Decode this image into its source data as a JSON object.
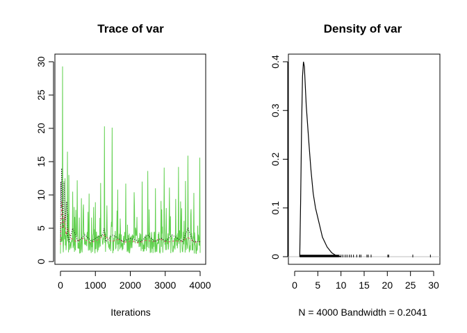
{
  "chart_data": [
    {
      "type": "line",
      "title": "Trace of var",
      "xlabel": "Iterations",
      "ylabel": "",
      "xlim": [
        0,
        4000
      ],
      "ylim": [
        0,
        30
      ],
      "xticks": [
        0,
        1000,
        2000,
        3000,
        4000
      ],
      "yticks": [
        0,
        5,
        10,
        15,
        20,
        25,
        30
      ],
      "n_iterations": 4000,
      "series": [
        {
          "color": "#000000",
          "style": "solid",
          "x": [
            0,
            10,
            20,
            35,
            50,
            70,
            100,
            140,
            180,
            200,
            250,
            350,
            500,
            700,
            900,
            1000,
            1200,
            1250,
            1300,
            1500,
            1800,
            2000,
            2300,
            2500,
            2700,
            2900,
            3000,
            3200,
            3500,
            3650,
            3800,
            4000
          ],
          "y": [
            3,
            12,
            8,
            14,
            10,
            5,
            12,
            6,
            9,
            4,
            3,
            5,
            3,
            4,
            3,
            3.5,
            4,
            5,
            3,
            4,
            3,
            3.5,
            3,
            4,
            3,
            3.5,
            3,
            4,
            3,
            5,
            3,
            3
          ]
        },
        {
          "color": "#df536b",
          "style": "dashed",
          "x": [
            0,
            20,
            40,
            80,
            120,
            160,
            220,
            300,
            450,
            650,
            850,
            1050,
            1250,
            1450,
            1650,
            1850,
            2050,
            2250,
            2450,
            2650,
            2850,
            3050,
            3250,
            3450,
            3650,
            3850,
            4000
          ],
          "y": [
            2.5,
            6,
            9,
            5,
            7,
            4,
            5,
            3.5,
            3,
            3.5,
            2.8,
            3.2,
            4,
            3,
            3.3,
            2.9,
            3.1,
            2.8,
            3.2,
            3,
            3.4,
            2.9,
            3.1,
            3,
            3.6,
            2.9,
            3
          ]
        },
        {
          "color": "#61d04f",
          "style": "solid",
          "spikes": [
            [
              60,
              29.3
            ],
            [
              195,
              16.5
            ],
            [
              240,
              13
            ],
            [
              1255,
              20.3
            ],
            [
              1480,
              20.1
            ],
            [
              3650,
              15.9
            ],
            [
              3990,
              15.6
            ],
            [
              2970,
              14.1
            ],
            [
              3380,
              14.2
            ],
            [
              2500,
              13.6
            ],
            [
              130,
              12.5
            ],
            [
              480,
              12.2
            ],
            [
              1150,
              11.8
            ],
            [
              2340,
              12.0
            ],
            [
              3580,
              12.1
            ],
            [
              1870,
              11.7
            ],
            [
              350,
              10.5
            ],
            [
              2720,
              11.0
            ],
            [
              3120,
              11.1
            ],
            [
              820,
              10.2
            ],
            [
              1640,
              10.8
            ],
            [
              2110,
              10.4
            ],
            [
              3820,
              10.3
            ],
            [
              600,
              9.5
            ],
            [
              1000,
              8.9
            ],
            [
              2880,
              9.1
            ],
            [
              3300,
              9.4
            ]
          ],
          "baseline_range": [
            1.2,
            4.5
          ]
        }
      ]
    },
    {
      "type": "line",
      "title": "Density of var",
      "xlabel": "N = 4000   Bandwidth = 0.2041",
      "ylabel": "",
      "xlim": [
        0,
        30
      ],
      "ylim": [
        0,
        0.4
      ],
      "xticks": [
        0,
        5,
        10,
        15,
        20,
        25,
        30
      ],
      "yticks": [
        0.0,
        0.1,
        0.2,
        0.3,
        0.4
      ],
      "series": [
        {
          "color": "#000000",
          "x": [
            1.1,
            1.3,
            1.5,
            1.7,
            1.9,
            2.1,
            2.3,
            2.5,
            2.8,
            3.1,
            3.5,
            4.0,
            4.5,
            5.0,
            5.5,
            6.0,
            7.0,
            8.0,
            9.0,
            10.0
          ],
          "y": [
            0.0,
            0.12,
            0.27,
            0.37,
            0.4,
            0.39,
            0.35,
            0.31,
            0.27,
            0.23,
            0.18,
            0.13,
            0.1,
            0.08,
            0.06,
            0.04,
            0.02,
            0.008,
            0.002,
            0.0
          ]
        }
      ],
      "rug": [
        1.2,
        1.5,
        1.8,
        2.1,
        2.4,
        2.7,
        3.0,
        3.3,
        3.6,
        3.9,
        4.2,
        4.5,
        4.8,
        5.1,
        5.4,
        5.7,
        6.0,
        6.3,
        6.6,
        6.9,
        7.2,
        7.5,
        7.8,
        8.1,
        8.4,
        8.7,
        9.0,
        9.3,
        9.6,
        10.0,
        10.4,
        10.9,
        11.3,
        11.8,
        12.2,
        12.7,
        13.4,
        14.0,
        14.3,
        15.6,
        15.9,
        16.5,
        20.1,
        20.3,
        25.5,
        29.3
      ]
    }
  ]
}
